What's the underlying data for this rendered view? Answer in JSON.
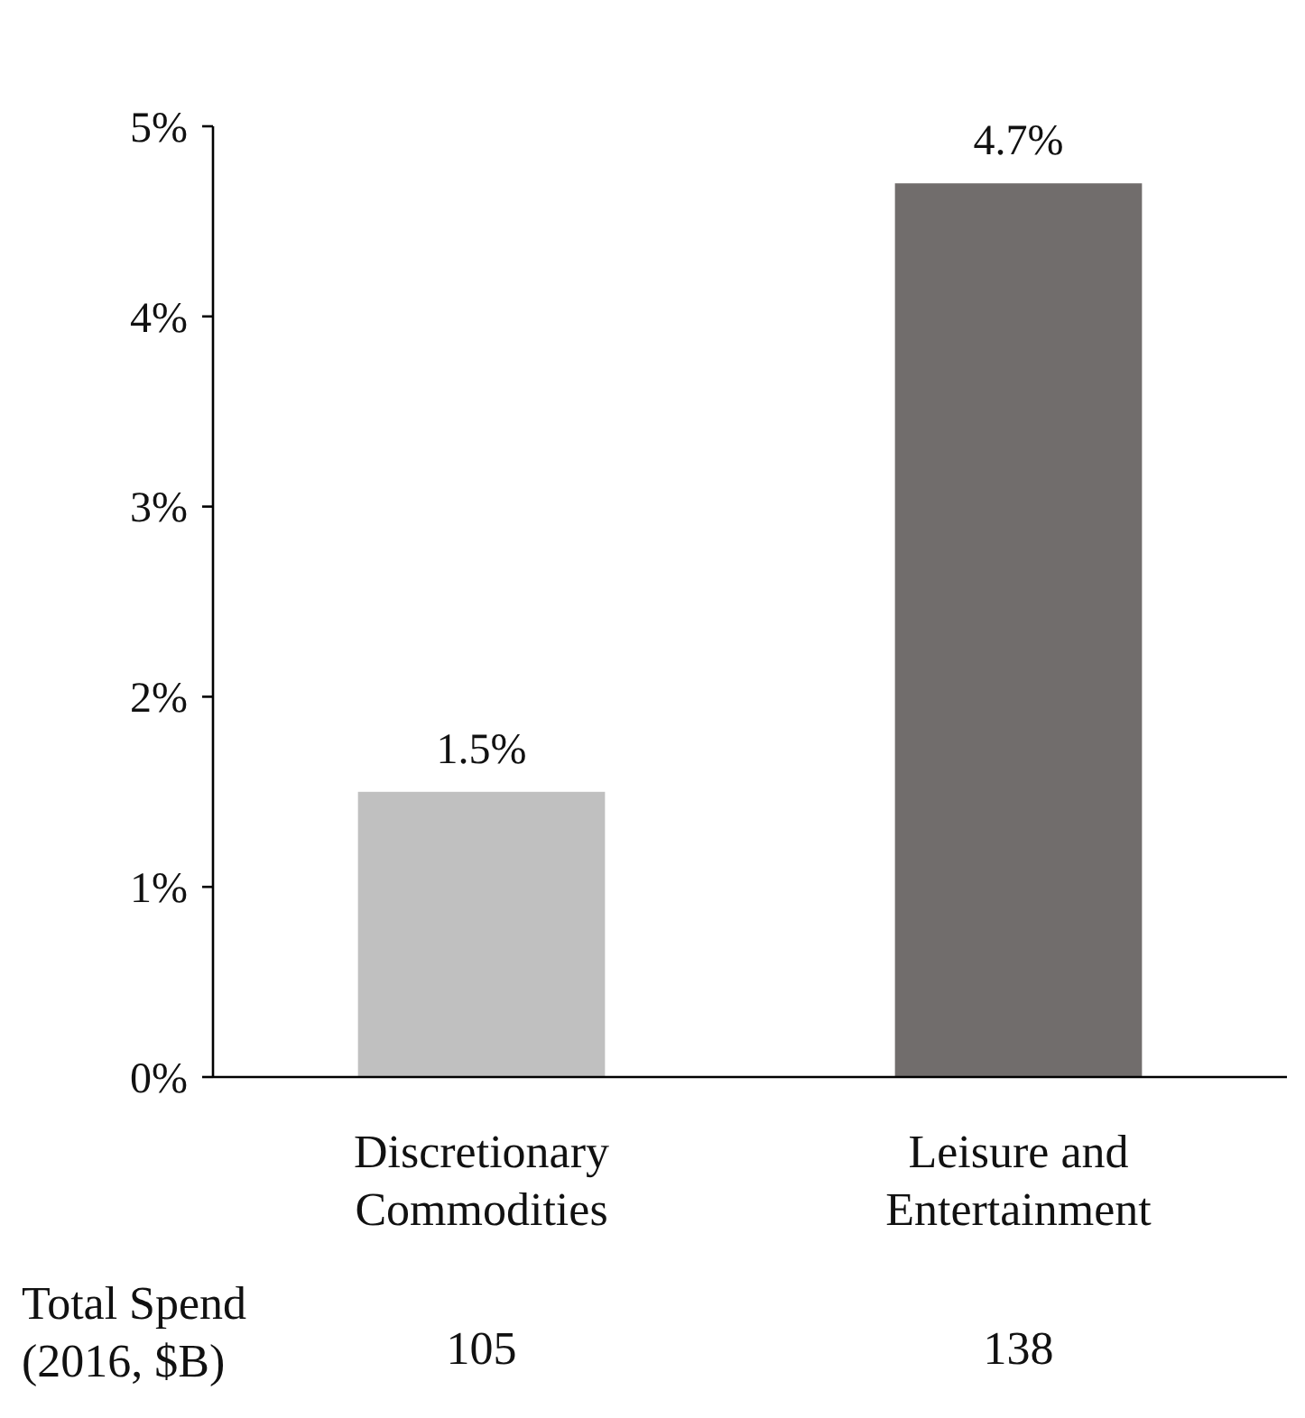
{
  "chart_data": {
    "type": "bar",
    "categories": [
      "Discretionary Commodities",
      "Leisure and Entertainment"
    ],
    "values": [
      1.5,
      4.7
    ],
    "colors": [
      "#c0c0c0",
      "#716d6c"
    ],
    "value_labels": [
      "1.5%",
      "4.7%"
    ],
    "ylim": [
      0,
      5
    ],
    "yticks": [
      {
        "value": 0,
        "label": "0%"
      },
      {
        "value": 1,
        "label": "1%"
      },
      {
        "value": 2,
        "label": "2%"
      },
      {
        "value": 3,
        "label": "3%"
      },
      {
        "value": 4,
        "label": "4%"
      },
      {
        "value": 5,
        "label": "5%"
      }
    ],
    "grid": false,
    "annotations": [
      "Total Spend (2016, $B)",
      "105",
      "138"
    ]
  }
}
